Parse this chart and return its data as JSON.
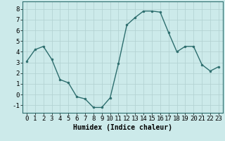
{
  "x": [
    0,
    1,
    2,
    3,
    4,
    5,
    6,
    7,
    8,
    9,
    10,
    11,
    12,
    13,
    14,
    15,
    16,
    17,
    18,
    19,
    20,
    21,
    22,
    23
  ],
  "y": [
    3.1,
    4.2,
    4.5,
    3.3,
    1.4,
    1.1,
    -0.2,
    -0.4,
    -1.2,
    -1.2,
    -0.3,
    2.9,
    6.5,
    7.2,
    7.8,
    7.8,
    7.7,
    5.8,
    4.0,
    4.5,
    4.5,
    2.8,
    2.2,
    2.6
  ],
  "line_color": "#2d6e6e",
  "marker": "o",
  "marker_size": 2.0,
  "line_width": 1.0,
  "xlabel": "Humidex (Indice chaleur)",
  "xlabel_fontsize": 7,
  "xlabel_fontweight": "bold",
  "bg_color": "#cceaea",
  "grid_color": "#b0d0d0",
  "yticks": [
    -1,
    0,
    1,
    2,
    3,
    4,
    5,
    6,
    7,
    8
  ],
  "xticks": [
    0,
    1,
    2,
    3,
    4,
    5,
    6,
    7,
    8,
    9,
    10,
    11,
    12,
    13,
    14,
    15,
    16,
    17,
    18,
    19,
    20,
    21,
    22,
    23
  ],
  "xlim": [
    -0.5,
    23.5
  ],
  "ylim": [
    -1.7,
    8.7
  ],
  "tick_fontsize": 6.5
}
